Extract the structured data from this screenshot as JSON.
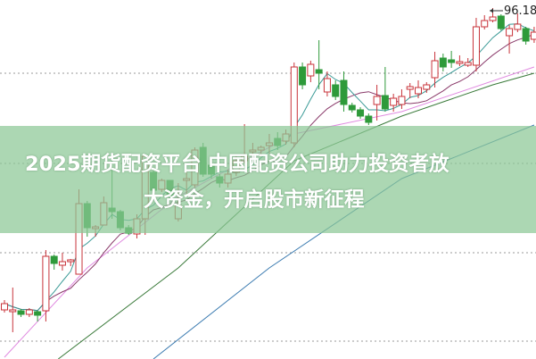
{
  "title": {
    "line1": "2025期货配资平台 中国配资公司助力投资者放",
    "line2": "大资金，开启股市新征程"
  },
  "chart_data": {
    "type": "candlestick",
    "max_label": "96.18",
    "grid": "horizontal dotted",
    "colors": {
      "up": "#c8333a",
      "down": "#2e9a3a",
      "ma5": "#3a9a96",
      "ma10": "#8a3a6a",
      "ma_pink": "#e08ae0",
      "ma_green": "#3a7a3a",
      "ma_blue": "#3a7ab0",
      "banner": "#8cc896"
    },
    "candles": [
      [
        62.38,
        63.48,
        62.08,
        63.08
      ],
      [
        62.18,
        64.88,
        59.88,
        62.38
      ],
      [
        62.28,
        62.48,
        61.58,
        61.88
      ],
      [
        61.88,
        62.58,
        61.58,
        62.38
      ],
      [
        62.18,
        62.28,
        61.08,
        61.78
      ],
      [
        62.28,
        69.08,
        61.08,
        68.38
      ],
      [
        68.38,
        68.58,
        66.88,
        67.58
      ],
      [
        67.38,
        68.78,
        66.78,
        67.78
      ],
      [
        67.78,
        68.08,
        67.28,
        67.98
      ],
      [
        66.38,
        75.88,
        66.38,
        74.28
      ],
      [
        74.28,
        74.58,
        70.58,
        71.58
      ],
      [
        71.48,
        71.88,
        70.58,
        71.68
      ],
      [
        71.88,
        75.08,
        71.88,
        74.38
      ],
      [
        73.78,
        79.58,
        72.58,
        73.38
      ],
      [
        73.38,
        73.58,
        71.28,
        71.58
      ],
      [
        71.58,
        71.88,
        70.78,
        70.98
      ],
      [
        70.88,
        73.08,
        70.38,
        72.58
      ],
      [
        72.58,
        79.78,
        70.78,
        79.58
      ],
      [
        77.78,
        78.08,
        75.58,
        75.78
      ],
      [
        75.88,
        77.08,
        75.58,
        76.88
      ],
      [
        76.88,
        76.88,
        74.58,
        75.08
      ],
      [
        72.58,
        76.58,
        72.28,
        74.08
      ],
      [
        76.88,
        78.08,
        75.38,
        77.08
      ],
      [
        76.38,
        80.58,
        76.08,
        80.28
      ],
      [
        80.58,
        81.08,
        77.28,
        77.58
      ],
      [
        78.58,
        79.08,
        77.08,
        77.58
      ],
      [
        77.28,
        77.58,
        76.08,
        76.58
      ],
      [
        76.58,
        78.08,
        76.08,
        77.58
      ],
      [
        77.78,
        79.78,
        77.38,
        79.08
      ],
      [
        79.08,
        83.18,
        78.78,
        79.58
      ],
      [
        80.08,
        81.08,
        79.28,
        80.28
      ],
      [
        80.28,
        80.78,
        79.58,
        80.58
      ],
      [
        80.78,
        82.08,
        79.88,
        81.08
      ],
      [
        81.58,
        82.28,
        80.28,
        80.78
      ],
      [
        81.28,
        82.58,
        80.88,
        82.08
      ],
      [
        81.08,
        90.08,
        80.58,
        89.58
      ],
      [
        89.58,
        90.08,
        87.08,
        87.58
      ],
      [
        88.58,
        90.28,
        87.88,
        89.88
      ],
      [
        89.28,
        92.58,
        87.08,
        88.88
      ],
      [
        86.78,
        89.08,
        86.28,
        88.28
      ],
      [
        87.58,
        88.08,
        85.88,
        86.28
      ],
      [
        88.08,
        89.08,
        84.58,
        85.38
      ],
      [
        85.28,
        85.58,
        84.48,
        84.78
      ],
      [
        84.78,
        85.08,
        83.78,
        84.08
      ],
      [
        84.08,
        84.38,
        83.08,
        83.38
      ],
      [
        85.38,
        87.58,
        83.58,
        86.28
      ],
      [
        86.38,
        89.58,
        84.58,
        84.88
      ],
      [
        85.28,
        86.58,
        84.58,
        86.08
      ],
      [
        85.38,
        87.08,
        84.88,
        86.28
      ],
      [
        87.08,
        87.78,
        86.08,
        87.38
      ],
      [
        86.58,
        88.08,
        86.08,
        87.28
      ],
      [
        87.08,
        87.88,
        86.68,
        87.58
      ],
      [
        88.38,
        91.28,
        87.28,
        90.28
      ],
      [
        90.58,
        91.08,
        89.08,
        89.58
      ],
      [
        90.38,
        91.38,
        89.48,
        90.08
      ],
      [
        89.98,
        90.88,
        89.68,
        90.18
      ],
      [
        89.78,
        90.58,
        89.58,
        90.08
      ],
      [
        89.78,
        95.08,
        89.08,
        94.08
      ],
      [
        94.08,
        95.38,
        93.78,
        94.78
      ],
      [
        94.78,
        96.18,
        94.58,
        95.18
      ],
      [
        95.28,
        95.48,
        93.68,
        93.88
      ],
      [
        93.08,
        94.28,
        91.08,
        93.88
      ],
      [
        93.78,
        95.58,
        93.48,
        94.38
      ],
      [
        93.88,
        94.08,
        92.08,
        92.48
      ],
      [
        92.68,
        94.08,
        92.28,
        93.48
      ]
    ],
    "candle_fields": [
      "open",
      "high",
      "low",
      "close"
    ],
    "long_ma_lines": [
      {
        "key": "ma_pink",
        "points": [
          [
            0,
            57.08
          ],
          [
            10,
            67.08
          ],
          [
            21,
            75.08
          ],
          [
            35,
            82.08
          ],
          [
            48,
            84.58
          ],
          [
            64,
            89.58
          ]
        ]
      },
      {
        "key": "ma_green",
        "points": [
          [
            6.5,
            56.88
          ],
          [
            21,
            67.08
          ],
          [
            35,
            79.08
          ],
          [
            48,
            84.08
          ],
          [
            59,
            87.58
          ],
          [
            64,
            88.88
          ]
        ]
      },
      {
        "key": "ma_blue",
        "points": [
          [
            18,
            56.88
          ],
          [
            32,
            67.08
          ],
          [
            48,
            77.08
          ],
          [
            64,
            83.08
          ]
        ]
      }
    ]
  }
}
